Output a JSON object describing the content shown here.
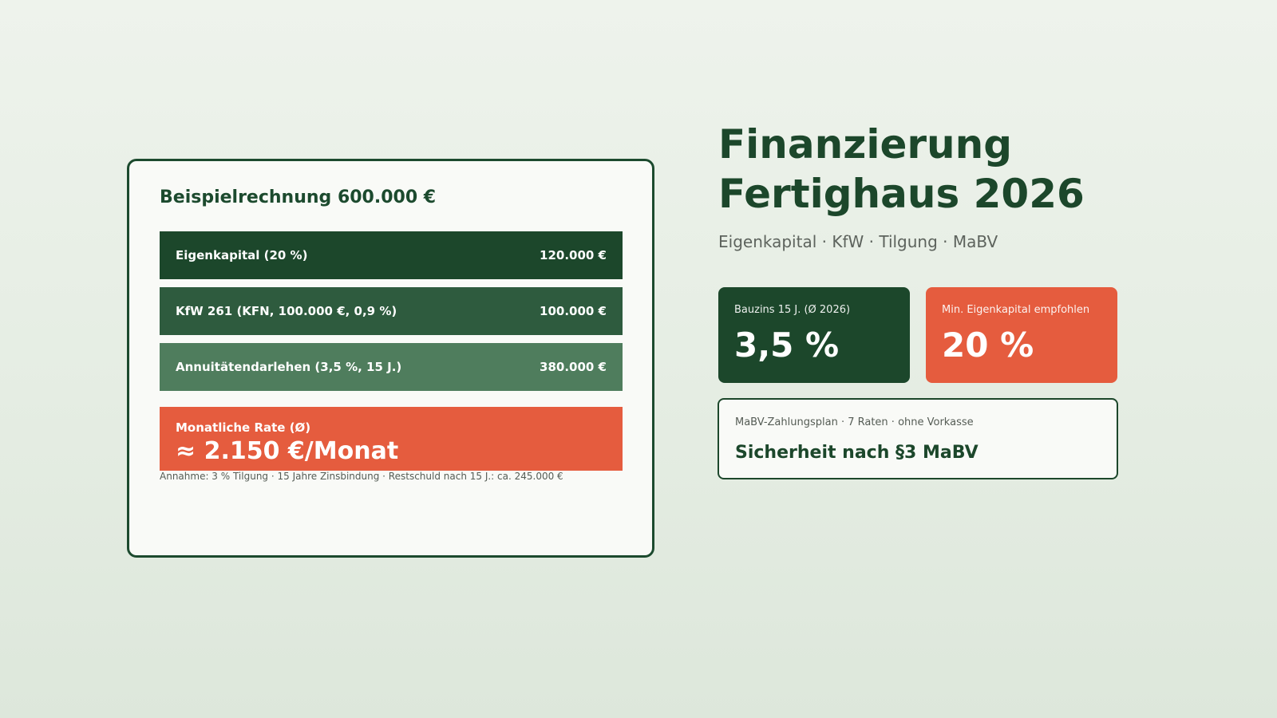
{
  "calculation": {
    "title": "Beispielrechnung 600.000 €",
    "rows": [
      {
        "label": "Eigenkapital (20 %)",
        "amount": "120.000 €",
        "color": "#1c472b"
      },
      {
        "label": "KfW 261 (KFN, 100.000 €, 0,9 %)",
        "amount": "100.000 €",
        "color": "#2e5b3e"
      },
      {
        "label": "Annuitätendarlehen (3,5 %, 15 J.)",
        "amount": "380.000 €",
        "color": "#4f7d5d"
      }
    ],
    "rate": {
      "label": "Monatliche Rate (Ø)",
      "value": "≈ 2.150 €/Monat",
      "color": "#e55c3e"
    },
    "assumption": "Annahme: 3 % Tilgung · 15 Jahre Zinsbindung · Restschuld nach 15 J.: ca. 245.000 €"
  },
  "headline": {
    "line1": "Finanzierung",
    "line2": "Fertighaus 2026",
    "subtitle": "Eigenkapital · KfW · Tilgung · MaBV"
  },
  "stats": [
    {
      "label": "Bauzins 15 J. (Ø 2026)",
      "value": "3,5 %",
      "color": "#1c472b"
    },
    {
      "label": "Min. Eigenkapital empfohlen",
      "value": "20 %",
      "color": "#e55c3e"
    }
  ],
  "mabv": {
    "label": "MaBV-Zahlungsplan · 7 Raten · ohne Vorkasse",
    "value": "Sicherheit nach §3 MaBV"
  }
}
